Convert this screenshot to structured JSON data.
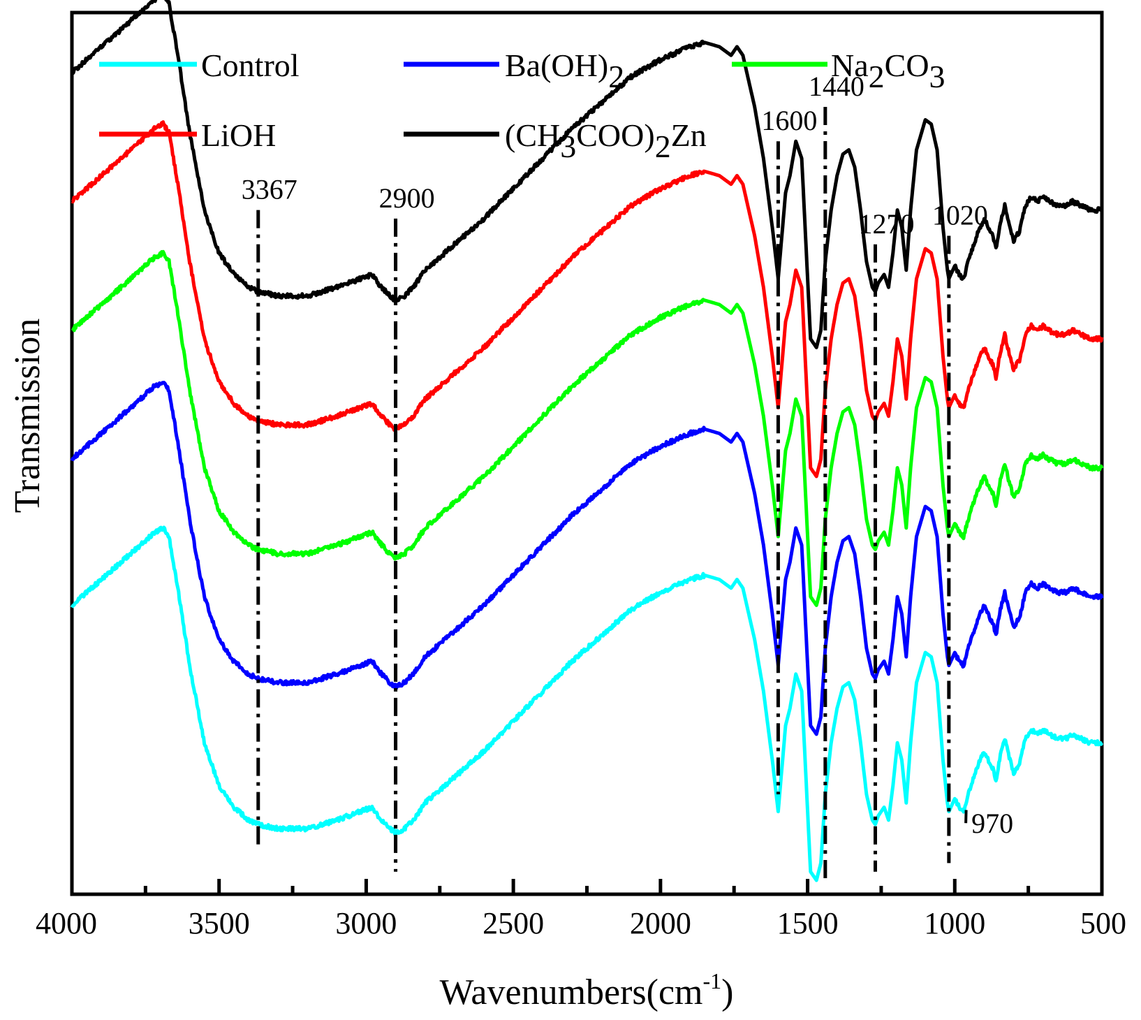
{
  "chart_data": {
    "type": "line",
    "xlabel": "Wavenumbers(cm",
    "xlabel_sup": "-1",
    "xlabel_close": ")",
    "ylabel": "Transmission",
    "xlim": [
      4000,
      500
    ],
    "x_reversed": true,
    "xticks": [
      4000,
      3500,
      3000,
      2500,
      2000,
      1500,
      1000,
      500
    ],
    "xtick_labels": [
      "4000",
      "3500",
      "3000",
      "2500",
      "2000",
      "1500",
      "1000",
      "500"
    ],
    "ylim": [
      0,
      100
    ],
    "y_ticks_shown": false,
    "grid": false,
    "legend_position": "top",
    "series": [
      {
        "name": "Control",
        "color": "#00ffff",
        "offset": 0
      },
      {
        "name": "Ba(OH)2",
        "color": "#0000ff",
        "offset": 17
      },
      {
        "name": "Na2CO3",
        "color": "#00ff00",
        "offset": 32
      },
      {
        "name": "LiOH",
        "color": "#ff0000",
        "offset": 47
      },
      {
        "name": "(CH3COO)2Zn",
        "color": "#000000",
        "offset": 62
      }
    ],
    "base_profile": {
      "x": [
        4000,
        3900,
        3800,
        3720,
        3690,
        3670,
        3640,
        3600,
        3550,
        3500,
        3450,
        3400,
        3367,
        3300,
        3200,
        3100,
        3020,
        2980,
        2960,
        2920,
        2900,
        2870,
        2840,
        2800,
        2700,
        2600,
        2500,
        2400,
        2300,
        2200,
        2100,
        2000,
        1900,
        1850,
        1800,
        1760,
        1740,
        1720,
        1700,
        1680,
        1650,
        1620,
        1600,
        1585,
        1575,
        1560,
        1540,
        1520,
        1500,
        1490,
        1470,
        1455,
        1440,
        1420,
        1400,
        1380,
        1360,
        1340,
        1320,
        1300,
        1280,
        1270,
        1260,
        1240,
        1225,
        1210,
        1195,
        1180,
        1165,
        1150,
        1130,
        1100,
        1080,
        1060,
        1040,
        1025,
        1020,
        1000,
        985,
        970,
        950,
        920,
        900,
        880,
        870,
        860,
        845,
        830,
        820,
        800,
        780,
        760,
        740,
        720,
        700,
        680,
        650,
        620,
        600,
        570,
        540,
        510,
        500
      ],
      "y": [
        32,
        35,
        38,
        40.5,
        41,
        40,
        34,
        25,
        16,
        11,
        8.5,
        7,
        6.5,
        6,
        6,
        7,
        8,
        8.5,
        7.5,
        6,
        5.5,
        6,
        7,
        9,
        12,
        15,
        18.5,
        22,
        25.5,
        28.5,
        31.5,
        33.5,
        35,
        35.5,
        35,
        34,
        35,
        34,
        31,
        28,
        22,
        14,
        8,
        14,
        18,
        20,
        24,
        22,
        8,
        1,
        0,
        2,
        10,
        16,
        20,
        22.5,
        23,
        21,
        16,
        10,
        7,
        6.5,
        7.5,
        8.5,
        7,
        11,
        16,
        14,
        9,
        16,
        23,
        26.5,
        26,
        23,
        14,
        9,
        8,
        9.5,
        8.5,
        8,
        10.5,
        13.5,
        15,
        13.5,
        13,
        11.5,
        14.5,
        16.5,
        15,
        12.5,
        13.5,
        16.5,
        17.5,
        17,
        17.5,
        17,
        16.5,
        16.5,
        17,
        16.5,
        16,
        16,
        16
      ]
    },
    "annotations": [
      {
        "label": "3367",
        "x": 3367,
        "y_top": 78,
        "y_bottom": 4
      },
      {
        "label": "2900",
        "x": 2900,
        "y_top": 77,
        "y_bottom": 1
      },
      {
        "label": "1600",
        "x": 1600,
        "y_top": 86,
        "y_bottom": 10
      },
      {
        "label": "1440",
        "x": 1440,
        "y_top": 90,
        "y_bottom": 0
      },
      {
        "label": "1270",
        "x": 1270,
        "y_top": 74,
        "y_bottom": 1
      },
      {
        "label": "1020",
        "x": 1020,
        "y_top": 75,
        "y_bottom": 2
      },
      {
        "label": "970",
        "x": 985,
        "y": 8.5,
        "leader_to_x": 915,
        "leader_to_y": 6
      }
    ]
  },
  "legend": {
    "items": [
      {
        "text": "Control",
        "color": "#00ffff"
      },
      {
        "text": "Ba(OH)",
        "sub": "2",
        "color": "#0000ff"
      },
      {
        "text": "Na",
        "sub": "2",
        "text2": "CO",
        "sub2": "3",
        "color": "#00ff00"
      },
      {
        "text": "LiOH",
        "color": "#ff0000"
      },
      {
        "text": "(CH",
        "sub": "3",
        "text2": "COO)",
        "sub2": "2",
        "text3": "Zn",
        "color": "#000000"
      }
    ]
  }
}
